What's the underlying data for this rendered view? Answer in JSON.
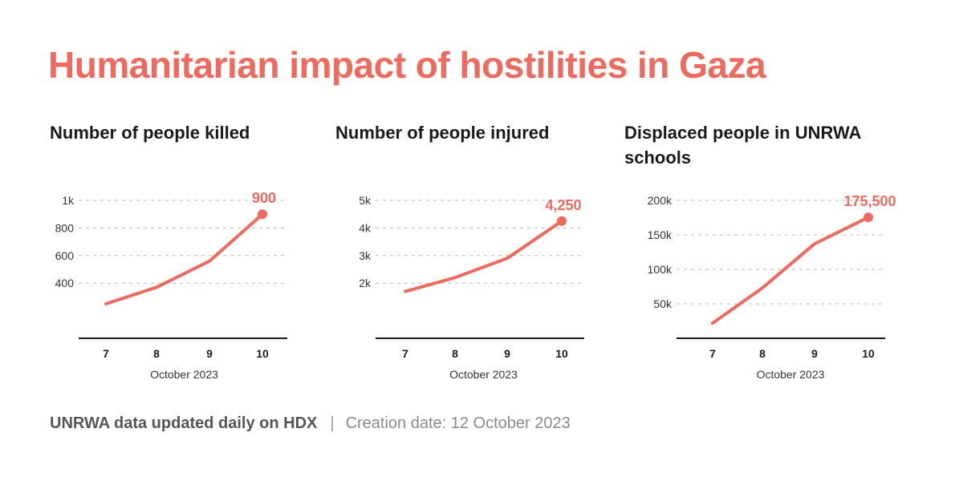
{
  "title": "Humanitarian impact of hostilities in Gaza",
  "accent_color": "#ec6a5e",
  "chart_data": [
    {
      "type": "line",
      "title": "Number of people killed",
      "xlabel": "October 2023",
      "ylabel": "",
      "categories": [
        "7",
        "8",
        "9",
        "10"
      ],
      "values": [
        250,
        370,
        560,
        900
      ],
      "ylim": [
        0,
        1000
      ],
      "yticks": [
        400,
        600,
        800,
        1000
      ],
      "ytick_labels": [
        "400",
        "600",
        "800",
        "1k"
      ],
      "end_label": "900",
      "grid": true,
      "legend": "none"
    },
    {
      "type": "line",
      "title": "Number of people injured",
      "xlabel": "October 2023",
      "ylabel": "",
      "categories": [
        "7",
        "8",
        "9",
        "10"
      ],
      "values": [
        1700,
        2200,
        2900,
        4250
      ],
      "ylim": [
        0,
        5000
      ],
      "yticks": [
        2000,
        3000,
        4000,
        5000
      ],
      "ytick_labels": [
        "2k",
        "3k",
        "4k",
        "5k"
      ],
      "end_label": "4,250",
      "grid": true,
      "legend": "none"
    },
    {
      "type": "line",
      "title": "Displaced people in UNRWA schools",
      "xlabel": "October 2023",
      "ylabel": "",
      "categories": [
        "7",
        "8",
        "9",
        "10"
      ],
      "values": [
        22000,
        73000,
        137000,
        175500
      ],
      "ylim": [
        0,
        200000
      ],
      "yticks": [
        50000,
        100000,
        150000,
        200000
      ],
      "ytick_labels": [
        "50k",
        "100k",
        "150k",
        "200k"
      ],
      "end_label": "175,500",
      "grid": true,
      "legend": "none"
    }
  ],
  "footer": {
    "source": "UNRWA data updated daily on HDX",
    "separator": "|",
    "creation_date": "Creation date: 12 October 2023"
  }
}
